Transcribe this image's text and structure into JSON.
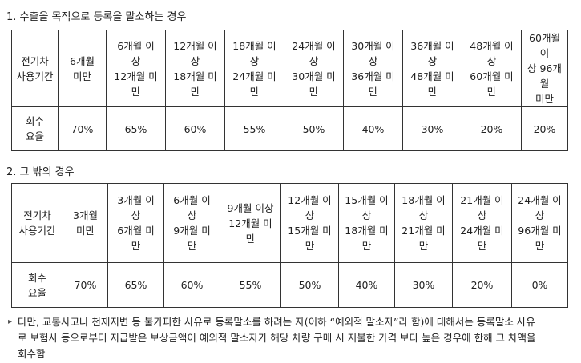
{
  "section1": {
    "title": "1. 수출을 목적으로 등록을 말소하는 경우",
    "header_label": [
      "전기차",
      "사용기간"
    ],
    "value_label": [
      "회수",
      "요율"
    ],
    "columns": [
      {
        "period": [
          "6개월",
          "미만"
        ],
        "rate": "70%"
      },
      {
        "period": [
          "6개월 이",
          "상",
          "12개월 미",
          "만"
        ],
        "rate": "65%"
      },
      {
        "period": [
          "12개월 이",
          "상",
          "18개월 미",
          "만"
        ],
        "rate": "60%"
      },
      {
        "period": [
          "18개월 이",
          "상",
          "24개월 미",
          "만"
        ],
        "rate": "55%"
      },
      {
        "period": [
          "24개월 이",
          "상",
          "30개월 미",
          "만"
        ],
        "rate": "50%"
      },
      {
        "period": [
          "30개월 이",
          "상",
          "36개월 미",
          "만"
        ],
        "rate": "40%"
      },
      {
        "period": [
          "36개월 이",
          "상",
          "48개월 미",
          "만"
        ],
        "rate": "30%"
      },
      {
        "period": [
          "48개월 이",
          "상",
          "60개월 미",
          "만"
        ],
        "rate": "20%"
      },
      {
        "period": [
          "60개월 이",
          "상 96개월",
          "미만"
        ],
        "rate": "20%"
      }
    ]
  },
  "section2": {
    "title": "2. 그 밖의 경우",
    "header_label": [
      "전기차",
      "사용기간"
    ],
    "value_label": [
      "회수",
      "요율"
    ],
    "columns": [
      {
        "period": [
          "3개월",
          "미만"
        ],
        "rate": "70%"
      },
      {
        "period": [
          "3개월 이",
          "상",
          "6개월 미",
          "만"
        ],
        "rate": "65%"
      },
      {
        "period": [
          "6개월 이",
          "상",
          "9개월 미",
          "만"
        ],
        "rate": "60%"
      },
      {
        "period": [
          "9개월 이상",
          "12개월 미",
          "만"
        ],
        "rate": "55%"
      },
      {
        "period": [
          "12개월 이",
          "상",
          "15개월 미",
          "만"
        ],
        "rate": "50%"
      },
      {
        "period": [
          "15개월 이",
          "상",
          "18개월 미",
          "만"
        ],
        "rate": "40%"
      },
      {
        "period": [
          "18개월 이",
          "상",
          "21개월 미",
          "만"
        ],
        "rate": "30%"
      },
      {
        "period": [
          "21개월 이",
          "상",
          "24개월 미",
          "만"
        ],
        "rate": "20%"
      },
      {
        "period": [
          "24개월 이",
          "상",
          "96개월 미",
          "만"
        ],
        "rate": "0%"
      }
    ]
  },
  "note": {
    "icon": "triangle-right-icon",
    "lines": [
      "다만, 교통사고나 천재지변 등 불가피한 사유로 등록말소를 하려는 자(이하 “예외적 말소자”라 함)에 대해서는 등록말소 사유",
      "로 보험사 등으로부터 지급받은 보상금액이 예외적 말소자가 해당 차량 구매 시 지불한 가격 보다 높은 경우에 한해 그 차액을",
      "회수함"
    ]
  }
}
